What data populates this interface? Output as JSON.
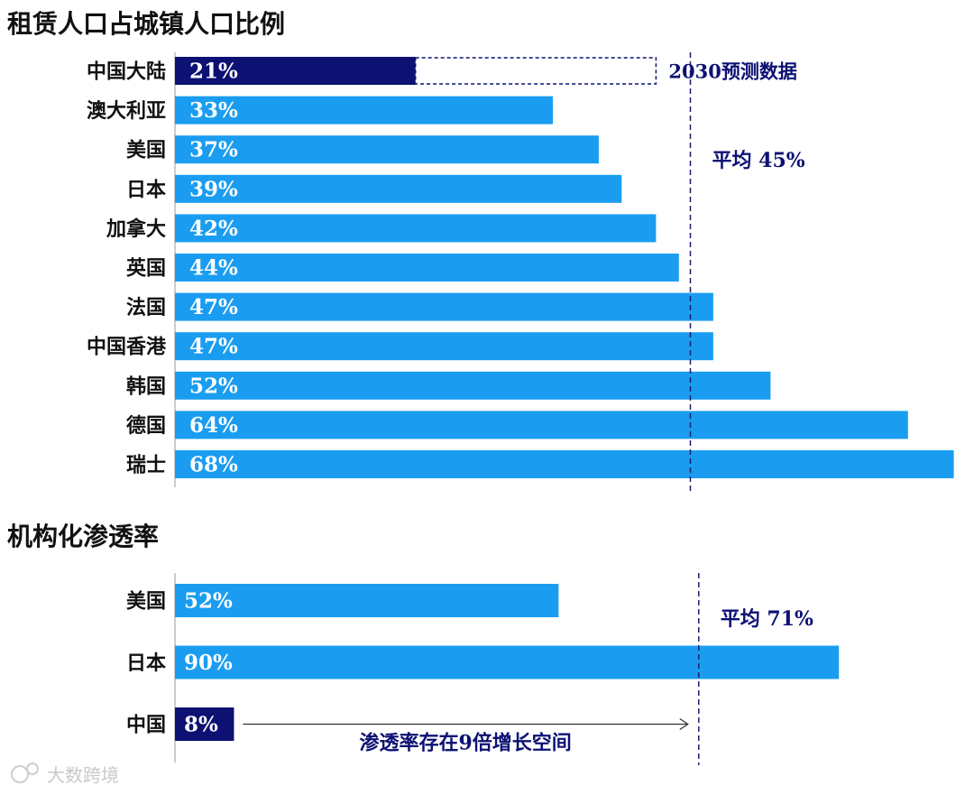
{
  "chart_data": [
    {
      "type": "bar",
      "orientation": "horizontal",
      "title": "租赁人口占城镇人口比例",
      "categories": [
        "中国大陆",
        "澳大利亚",
        "美国",
        "日本",
        "加拿大",
        "英国",
        "法国",
        "中国香港",
        "韩国",
        "德国",
        "瑞士"
      ],
      "values": [
        21,
        33,
        37,
        39,
        42,
        44,
        47,
        47,
        52,
        64,
        68
      ],
      "value_labels": [
        "21%",
        "33%",
        "37%",
        "39%",
        "42%",
        "44%",
        "47%",
        "47%",
        "52%",
        "64%",
        "68%"
      ],
      "forecast": {
        "category": "中国大陆",
        "value": 42,
        "label": "2030预测数据"
      },
      "average": {
        "value": 45,
        "label": "平均 45%"
      },
      "unit": "%",
      "grid": false
    },
    {
      "type": "bar",
      "orientation": "horizontal",
      "title": "机构化渗透率",
      "categories": [
        "美国",
        "日本",
        "中国"
      ],
      "values": [
        52,
        90,
        8
      ],
      "value_labels": [
        "52%",
        "90%",
        "8%"
      ],
      "average": {
        "value": 71,
        "label": "平均 71%"
      },
      "annotation": {
        "label": "渗透率存在9倍增长空间",
        "from": 8,
        "to": 71
      },
      "unit": "%",
      "grid": false
    }
  ],
  "watermark": {
    "text": "大数跨境"
  },
  "colors": {
    "bar": "#1a9df0",
    "highlight": "#0c1173",
    "text": "#111111",
    "average_line": "#1a1f6e",
    "label_text": "#ffffff"
  }
}
